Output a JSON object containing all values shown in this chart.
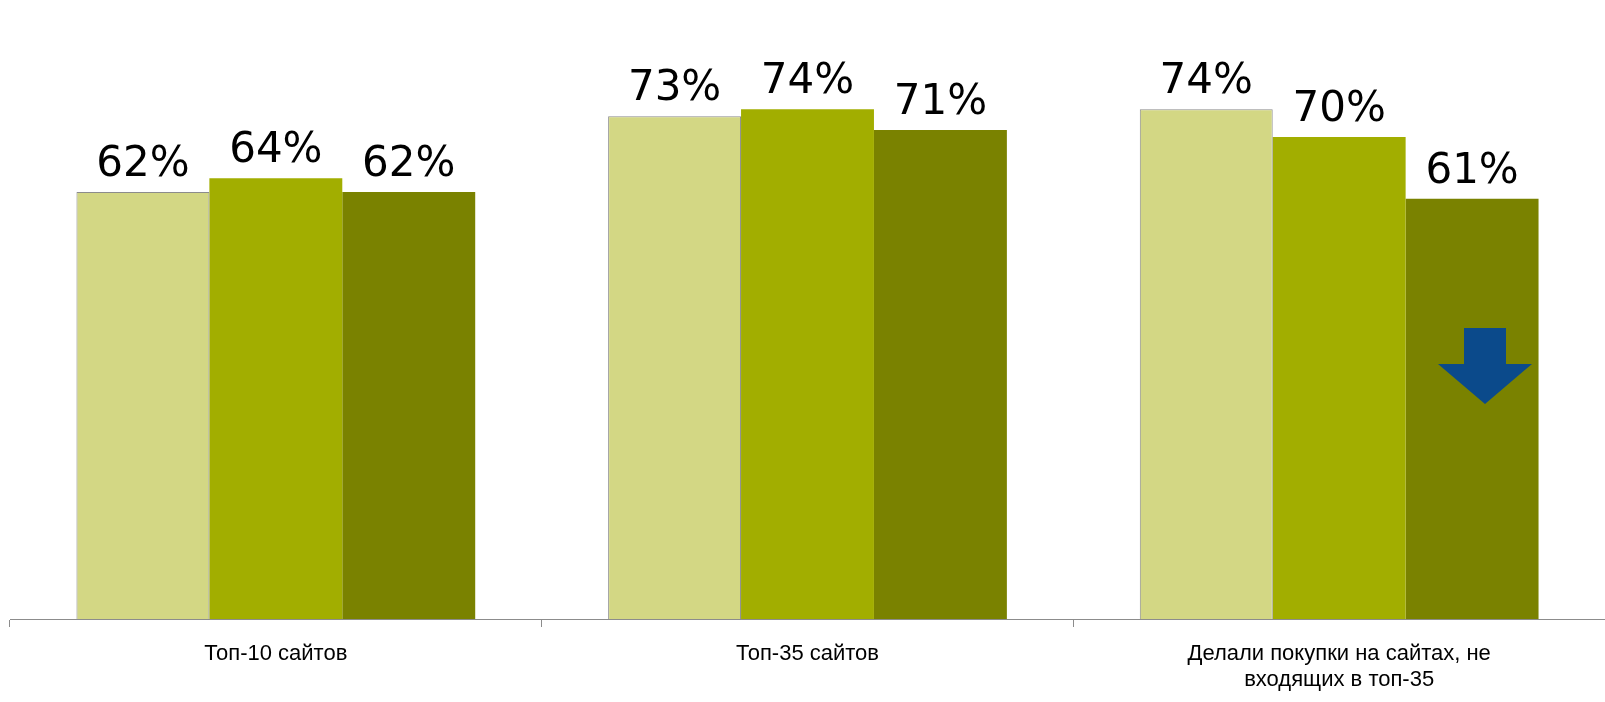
{
  "chart_data": {
    "type": "bar",
    "categories": [
      "Топ-10 сайтов",
      "Топ-35 сайтов",
      "Делали покупки на сайтах, не входящих в топ-35"
    ],
    "series": [
      {
        "color": "#d3d784",
        "values": [
          62,
          73,
          74
        ],
        "value_labels": [
          "62%",
          "73%",
          "74%"
        ]
      },
      {
        "color": "#a2ae00",
        "values": [
          64,
          74,
          70
        ],
        "value_labels": [
          "64%",
          "74%",
          "70%"
        ]
      },
      {
        "color": "#7a8200",
        "values": [
          62,
          71,
          61
        ],
        "value_labels": [
          "62%",
          "71%",
          "61%"
        ]
      }
    ],
    "grid": false,
    "legend": false
  }
}
